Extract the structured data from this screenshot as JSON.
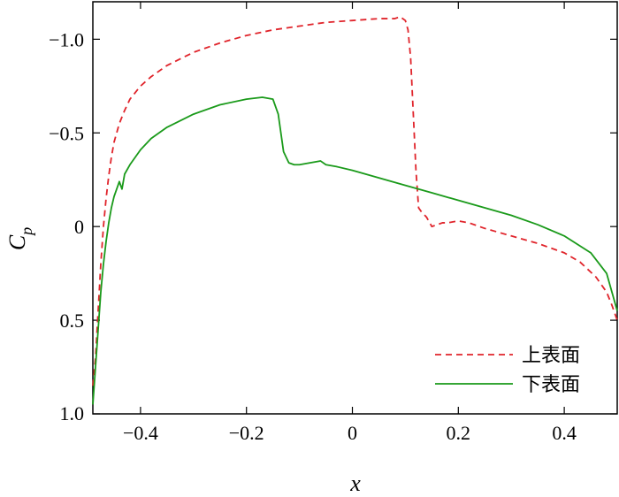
{
  "chart_data": {
    "type": "line",
    "xlabel": "x",
    "ylabel_main": "C",
    "ylabel_sub": "p",
    "xlim": [
      -0.49,
      0.5
    ],
    "ylim": [
      1.0,
      -1.2
    ],
    "y_inverted": true,
    "grid": false,
    "legend_position": "bottom-right",
    "x_ticks": [
      {
        "value": -0.4,
        "label": "−0.4"
      },
      {
        "value": -0.2,
        "label": "−0.2"
      },
      {
        "value": 0,
        "label": "0"
      },
      {
        "value": 0.2,
        "label": "0.2"
      },
      {
        "value": 0.4,
        "label": "0.4"
      }
    ],
    "y_ticks": [
      {
        "value": -1.0,
        "label": "−1.0"
      },
      {
        "value": -0.5,
        "label": "−0.5"
      },
      {
        "value": 0,
        "label": "0"
      },
      {
        "value": 0.5,
        "label": "0.5"
      },
      {
        "value": 1.0,
        "label": "1.0"
      }
    ],
    "series": [
      {
        "name": "上表面",
        "color": "#e0242b",
        "dash": "dashed",
        "x": [
          -0.49,
          -0.485,
          -0.48,
          -0.475,
          -0.47,
          -0.465,
          -0.46,
          -0.455,
          -0.45,
          -0.44,
          -0.43,
          -0.42,
          -0.4,
          -0.38,
          -0.35,
          -0.3,
          -0.25,
          -0.2,
          -0.15,
          -0.1,
          -0.05,
          0.0,
          0.05,
          0.08,
          0.09,
          0.1,
          0.105,
          0.11,
          0.115,
          0.12,
          0.125,
          0.13,
          0.14,
          0.15,
          0.16,
          0.17,
          0.18,
          0.2,
          0.22,
          0.25,
          0.3,
          0.35,
          0.4,
          0.43,
          0.46,
          0.48,
          0.49,
          0.5
        ],
        "y": [
          0.85,
          0.7,
          0.45,
          0.2,
          0.0,
          -0.15,
          -0.27,
          -0.37,
          -0.45,
          -0.55,
          -0.62,
          -0.68,
          -0.75,
          -0.8,
          -0.86,
          -0.93,
          -0.98,
          -1.02,
          -1.05,
          -1.07,
          -1.09,
          -1.1,
          -1.11,
          -1.11,
          -1.12,
          -1.1,
          -1.05,
          -0.9,
          -0.6,
          -0.3,
          -0.1,
          -0.08,
          -0.05,
          0.0,
          -0.01,
          -0.02,
          -0.02,
          -0.03,
          -0.02,
          0.01,
          0.05,
          0.09,
          0.14,
          0.19,
          0.27,
          0.35,
          0.42,
          0.5
        ]
      },
      {
        "name": "下表面",
        "color": "#1a9a1a",
        "dash": "solid",
        "x": [
          -0.49,
          -0.485,
          -0.48,
          -0.475,
          -0.47,
          -0.465,
          -0.46,
          -0.455,
          -0.45,
          -0.44,
          -0.435,
          -0.43,
          -0.42,
          -0.4,
          -0.38,
          -0.35,
          -0.3,
          -0.25,
          -0.2,
          -0.17,
          -0.15,
          -0.14,
          -0.135,
          -0.13,
          -0.12,
          -0.11,
          -0.1,
          -0.08,
          -0.06,
          -0.05,
          -0.03,
          0.0,
          0.05,
          0.1,
          0.15,
          0.2,
          0.25,
          0.3,
          0.35,
          0.4,
          0.45,
          0.48,
          0.5
        ],
        "y": [
          0.95,
          0.75,
          0.55,
          0.35,
          0.2,
          0.08,
          -0.02,
          -0.1,
          -0.16,
          -0.24,
          -0.2,
          -0.28,
          -0.33,
          -0.41,
          -0.47,
          -0.53,
          -0.6,
          -0.65,
          -0.68,
          -0.69,
          -0.68,
          -0.6,
          -0.5,
          -0.4,
          -0.34,
          -0.33,
          -0.33,
          -0.34,
          -0.35,
          -0.33,
          -0.32,
          -0.3,
          -0.26,
          -0.22,
          -0.18,
          -0.14,
          -0.1,
          -0.06,
          -0.01,
          0.05,
          0.14,
          0.25,
          0.45
        ]
      }
    ]
  }
}
